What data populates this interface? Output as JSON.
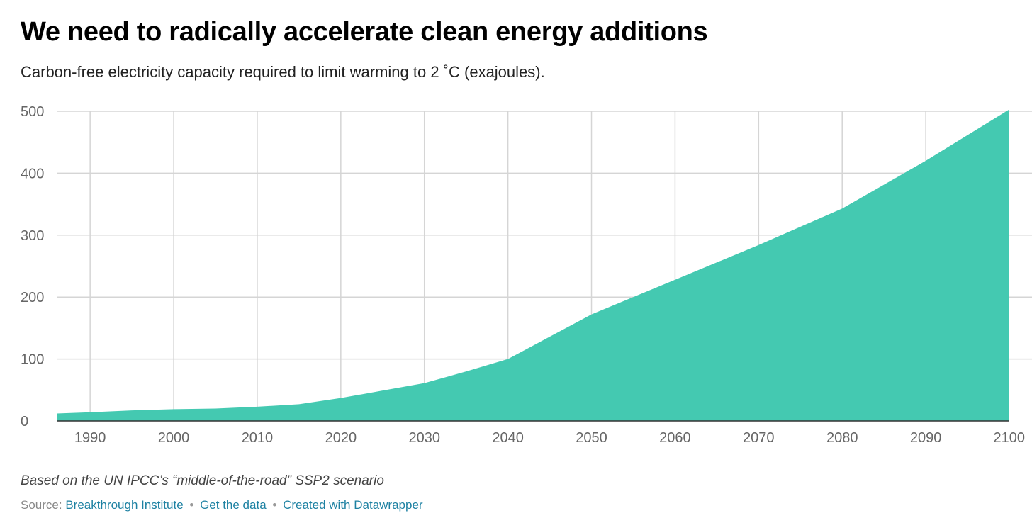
{
  "title": "We need to radically accelerate clean energy additions",
  "subtitle": "Carbon-free electricity capacity required to limit warming to 2 ˚C (exajoules).",
  "notes": "Based on the UN IPCC’s “middle-of-the-road” SSP2 scenario",
  "footer": {
    "source_label": "Source:",
    "source_link": "Breakthrough Institute",
    "separator": "•",
    "data_link": "Get the data",
    "credit_link": "Created with Datawrapper"
  },
  "colors": {
    "area": "#44c9b1",
    "grid": "#d5d5d5",
    "axis": "#333333",
    "tick_text": "#666666",
    "link": "#1d81a2"
  },
  "chart_data": {
    "type": "area",
    "title": "We need to radically accelerate clean energy additions",
    "subtitle": "Carbon-free electricity capacity required to limit warming to 2 ˚C (exajoules).",
    "xlabel": "",
    "ylabel": "",
    "xlim": [
      1986,
      2100
    ],
    "ylim": [
      0,
      500
    ],
    "x_ticks": [
      1990,
      2000,
      2010,
      2020,
      2030,
      2040,
      2050,
      2060,
      2070,
      2080,
      2090,
      2100
    ],
    "y_ticks": [
      0,
      100,
      200,
      300,
      400,
      500
    ],
    "grid": true,
    "legend": "none",
    "series": [
      {
        "x": [
          1986,
          1990,
          1995,
          2000,
          2005,
          2010,
          2015,
          2020,
          2025,
          2030,
          2035,
          2040,
          2050,
          2060,
          2070,
          2080,
          2090,
          2100
        ],
        "values": [
          12,
          14,
          17,
          19,
          20,
          23,
          27,
          37,
          49,
          61,
          80,
          100,
          172,
          228,
          284,
          343,
          420,
          503
        ]
      }
    ]
  }
}
